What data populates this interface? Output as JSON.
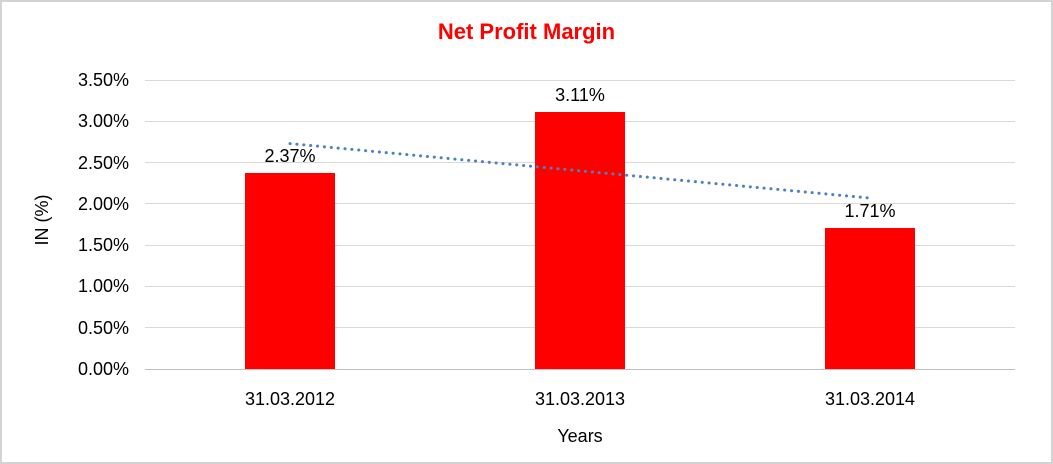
{
  "chart_data": {
    "type": "bar",
    "title": "Net Profit Margin",
    "xlabel": "Years",
    "ylabel": "IN (%)",
    "categories": [
      "31.03.2012",
      "31.03.2013",
      "31.03.2014"
    ],
    "series": [
      {
        "name": "Net Profit Margin",
        "values": [
          2.37,
          3.11,
          1.71
        ]
      }
    ],
    "value_labels": [
      "2.37%",
      "3.11%",
      "1.71%"
    ],
    "ylim": [
      0,
      3.5
    ],
    "ytick_step": 0.5,
    "ytick_labels": [
      "0.00%",
      "0.50%",
      "1.00%",
      "1.50%",
      "2.00%",
      "2.50%",
      "3.00%",
      "3.50%"
    ],
    "grid": true,
    "legend": false,
    "trendline": {
      "type": "linear",
      "style": "dotted",
      "start_value": 2.73,
      "end_value": 2.07
    },
    "colors": {
      "bar": "#FF0000",
      "title": "#FF0000",
      "trendline": "#4F81BD",
      "gridline": "#D9D9D9",
      "baseline": "#C0C0C0",
      "text": "#000000",
      "border": "#D3D3D3"
    }
  }
}
